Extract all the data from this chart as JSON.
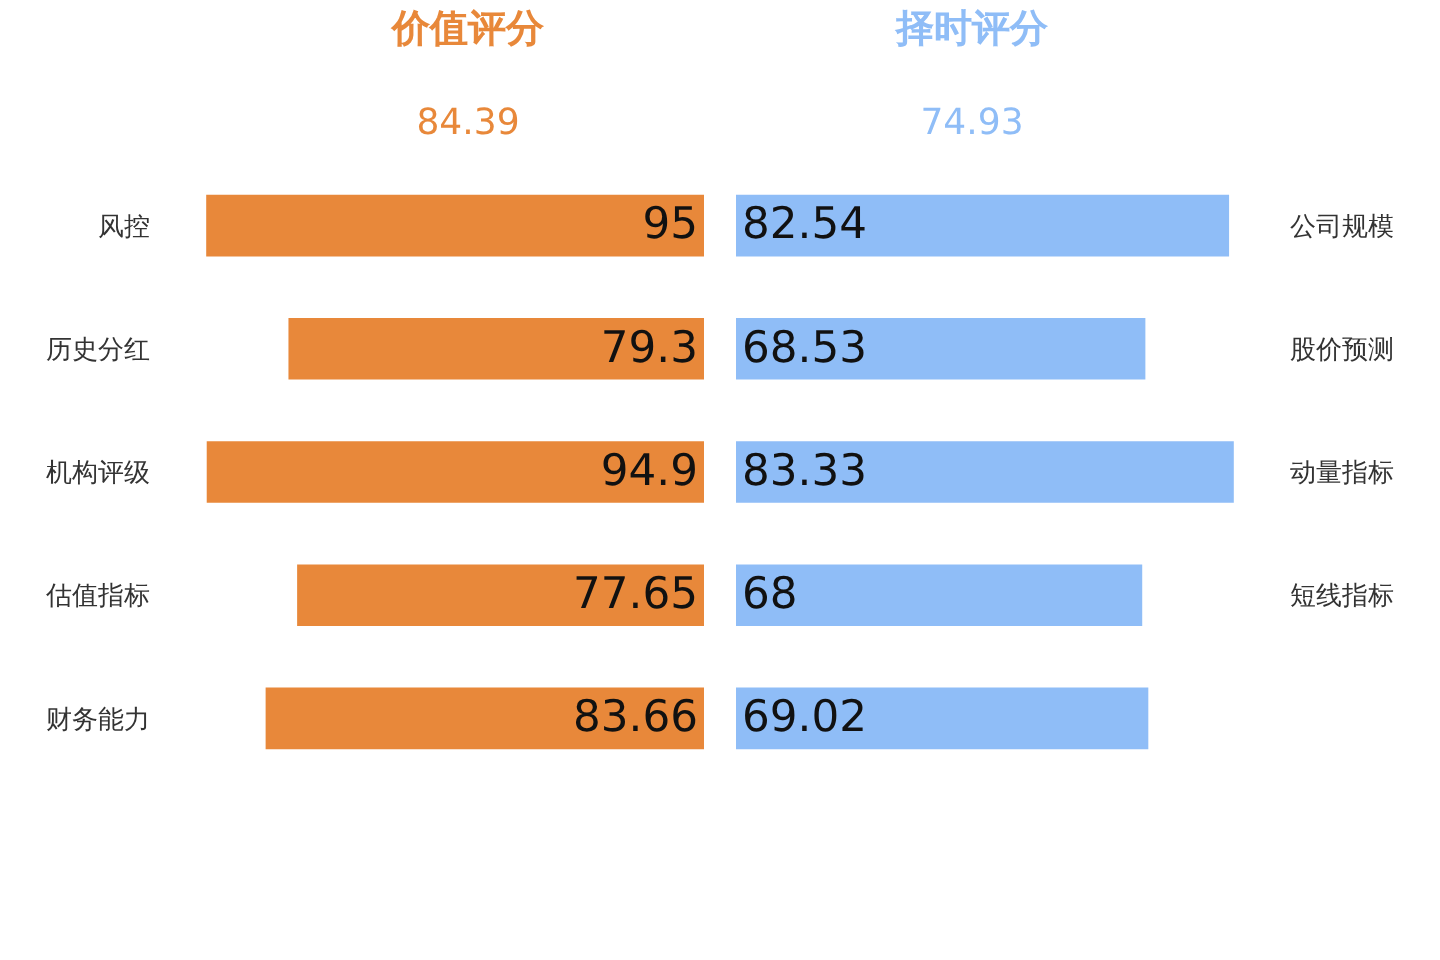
{
  "chart_data": [
    {
      "type": "bar",
      "orientation": "horizontal",
      "title": "价值评分",
      "subtitle": "84.39",
      "categories": [
        "风控",
        "历史分红",
        "机构评级",
        "估值指标",
        "财务能力"
      ],
      "values": [
        95,
        79.3,
        94.9,
        77.65,
        83.66
      ],
      "color": "#e8883a",
      "data_labels": true,
      "tick_labels": "y"
    },
    {
      "type": "bar",
      "orientation": "horizontal",
      "title": "择时评分",
      "subtitle": "74.93",
      "categories": [
        "公司规模",
        "股价预测",
        "动量指标",
        "短线指标",
        null
      ],
      "values": [
        82.54,
        68.53,
        83.33,
        68,
        69.02
      ],
      "color": "#8fbdf7",
      "data_labels": true,
      "tick_labels": "y"
    }
  ]
}
